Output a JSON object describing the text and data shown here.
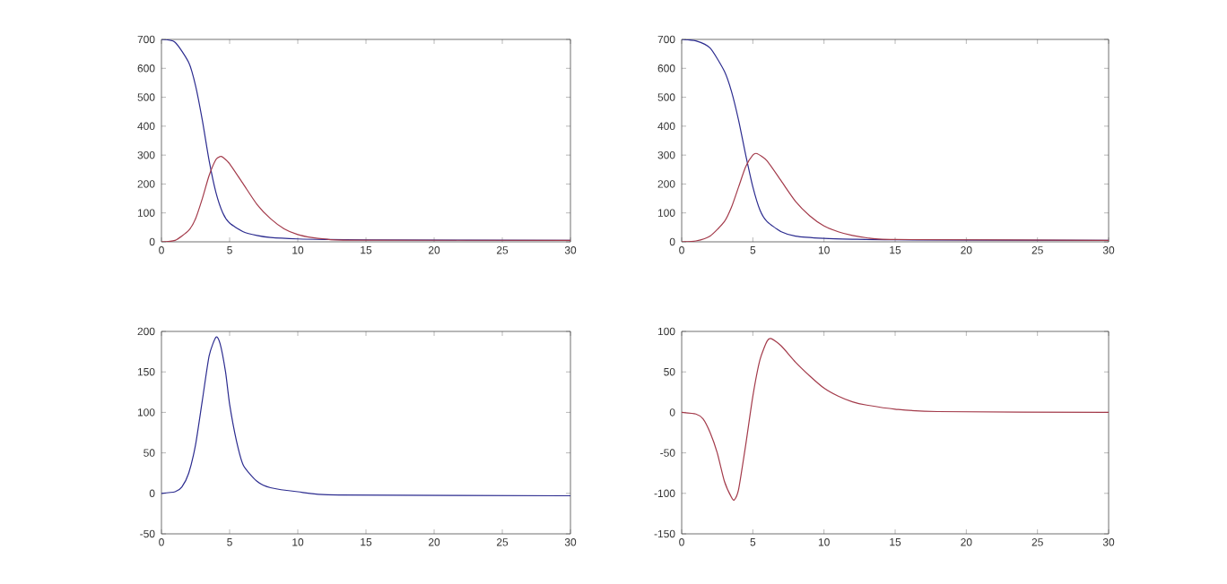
{
  "chart_data": [
    {
      "type": "line",
      "xlim": [
        0,
        30
      ],
      "ylim": [
        0,
        700
      ],
      "xticks": [
        0,
        5,
        10,
        15,
        20,
        25,
        30
      ],
      "yticks": [
        0,
        100,
        200,
        300,
        400,
        500,
        600,
        700
      ],
      "series": [
        {
          "color": "#2b2b8f",
          "x": [
            0,
            1,
            2,
            2.5,
            3,
            3.5,
            4,
            4.5,
            5,
            6,
            7,
            8,
            10,
            12,
            15,
            30
          ],
          "values": [
            700,
            690,
            620,
            540,
            420,
            280,
            170,
            100,
            65,
            35,
            22,
            15,
            10,
            8,
            7,
            5
          ]
        },
        {
          "color": "#a33a4a",
          "x": [
            0,
            1,
            2,
            2.5,
            3,
            3.5,
            4,
            4.3,
            4.5,
            5,
            6,
            7,
            8,
            9,
            10,
            11,
            12,
            14,
            30
          ],
          "values": [
            0,
            5,
            40,
            80,
            150,
            230,
            285,
            295,
            293,
            270,
            200,
            130,
            80,
            45,
            25,
            15,
            10,
            6,
            5
          ]
        }
      ]
    },
    {
      "type": "line",
      "xlim": [
        0,
        30
      ],
      "ylim": [
        0,
        700
      ],
      "xticks": [
        0,
        5,
        10,
        15,
        20,
        25,
        30
      ],
      "yticks": [
        0,
        100,
        200,
        300,
        400,
        500,
        600,
        700
      ],
      "series": [
        {
          "color": "#2b2b8f",
          "x": [
            0,
            1,
            2,
            3,
            3.5,
            4,
            4.5,
            5,
            5.5,
            6,
            7,
            8,
            10,
            12,
            15,
            30
          ],
          "values": [
            700,
            695,
            670,
            590,
            520,
            420,
            300,
            190,
            110,
            70,
            35,
            20,
            12,
            9,
            7,
            5
          ]
        },
        {
          "color": "#a33a4a",
          "x": [
            0,
            1,
            2,
            3,
            3.5,
            4,
            4.5,
            5,
            5.3,
            6,
            7,
            8,
            9,
            10,
            11,
            12,
            13,
            15,
            30
          ],
          "values": [
            0,
            3,
            20,
            70,
            120,
            190,
            260,
            300,
            305,
            280,
            210,
            140,
            90,
            55,
            35,
            22,
            14,
            8,
            5
          ]
        }
      ]
    },
    {
      "type": "line",
      "xlim": [
        0,
        30
      ],
      "ylim": [
        -50,
        200
      ],
      "xticks": [
        0,
        5,
        10,
        15,
        20,
        25,
        30
      ],
      "yticks": [
        -50,
        0,
        50,
        100,
        150,
        200
      ],
      "series": [
        {
          "color": "#2b2b8f",
          "x": [
            0,
            1,
            1.5,
            2,
            2.5,
            3,
            3.5,
            4,
            4.3,
            4.7,
            5,
            5.5,
            6,
            7,
            8,
            10,
            13,
            30
          ],
          "values": [
            0,
            2,
            8,
            25,
            60,
            115,
            170,
            193,
            185,
            150,
            110,
            65,
            35,
            15,
            7,
            2,
            -2,
            -3
          ]
        }
      ]
    },
    {
      "type": "line",
      "xlim": [
        0,
        30
      ],
      "ylim": [
        -150,
        100
      ],
      "xticks": [
        0,
        5,
        10,
        15,
        20,
        25,
        30
      ],
      "yticks": [
        -150,
        -100,
        -50,
        0,
        50,
        100
      ],
      "series": [
        {
          "color": "#a33a4a",
          "x": [
            0,
            1,
            1.5,
            2,
            2.5,
            3,
            3.5,
            3.7,
            4,
            4.5,
            5,
            5.5,
            6,
            6.3,
            7,
            8,
            9,
            10,
            11,
            12,
            13,
            15,
            18,
            30
          ],
          "values": [
            0,
            -2,
            -8,
            -25,
            -50,
            -85,
            -105,
            -108,
            -95,
            -40,
            20,
            65,
            88,
            91,
            82,
            62,
            45,
            30,
            20,
            13,
            9,
            4,
            1,
            0
          ]
        }
      ]
    }
  ]
}
